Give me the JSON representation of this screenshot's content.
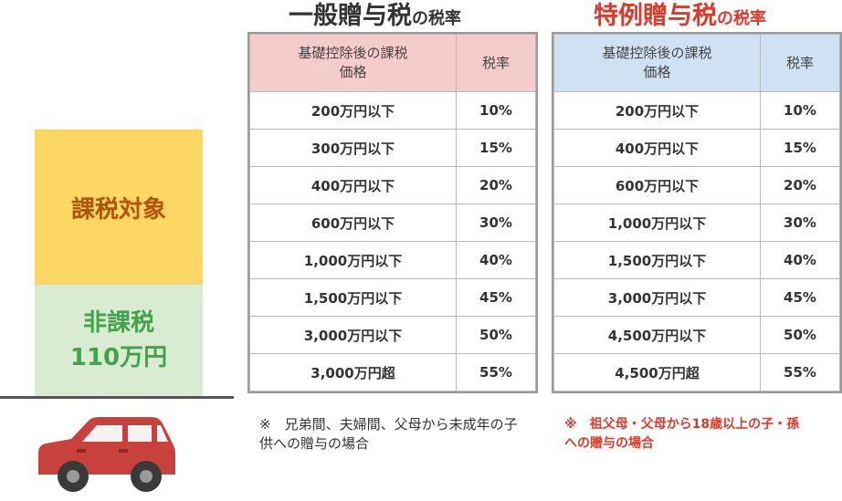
{
  "left": {
    "taxable_label": "課税対象",
    "nontaxable_label": "非課税",
    "nontaxable_amount": "110万円",
    "car_icon": "car-icon",
    "colors": {
      "taxable": "#fdd763",
      "nontaxable": "#d9ecd2",
      "car": "#c8413c"
    }
  },
  "general": {
    "title_main": "一般贈与税",
    "title_suffix": "の税率",
    "header_col1": "基礎控除後の課税価格",
    "header_col2": "税率",
    "rows": [
      {
        "amount": "200万円以下",
        "rate": "10%"
      },
      {
        "amount": "300万円以下",
        "rate": "15%"
      },
      {
        "amount": "400万円以下",
        "rate": "20%"
      },
      {
        "amount": "600万円以下",
        "rate": "30%"
      },
      {
        "amount": "1,000万円以下",
        "rate": "40%"
      },
      {
        "amount": "1,500万円以下",
        "rate": "45%"
      },
      {
        "amount": "3,000万円以下",
        "rate": "50%"
      },
      {
        "amount": "3,000万円超",
        "rate": "55%"
      }
    ],
    "note": "※　兄弟間、夫婦間、父母から未成年の子供への贈与の場合"
  },
  "special": {
    "title_main": "特例贈与税",
    "title_suffix": "の税率",
    "header_col1": "基礎控除後の課税価格",
    "header_col2": "税率",
    "rows": [
      {
        "amount": "200万円以下",
        "rate": "10%"
      },
      {
        "amount": "400万円以下",
        "rate": "15%"
      },
      {
        "amount": "600万円以下",
        "rate": "20%"
      },
      {
        "amount": "1,000万円以下",
        "rate": "30%"
      },
      {
        "amount": "1,500万円以下",
        "rate": "40%"
      },
      {
        "amount": "3,000万円以下",
        "rate": "45%"
      },
      {
        "amount": "4,500万円以下",
        "rate": "50%"
      },
      {
        "amount": "4,500万円超",
        "rate": "55%"
      }
    ],
    "note": "※　祖父母・父母から18歳以上の子・孫への贈与の場合"
  }
}
